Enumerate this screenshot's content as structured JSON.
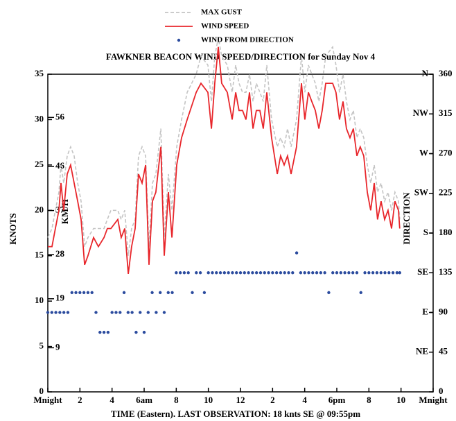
{
  "chart_data": {
    "type": "line",
    "title": "FAWKNER BEACON WIND SPEED/DIRECTION for Sunday Nov 4",
    "x_label": "TIME (Eastern). LAST OBSERVATION: 18 knts SE @ 09:55pm",
    "y_label": "KNOTS",
    "y3_label": "KM/H",
    "y2_label": "DIRECTION",
    "xlim": [
      0,
      24
    ],
    "xticks": [
      {
        "value": 0,
        "label": "Mnight"
      },
      2,
      4,
      {
        "value": 6,
        "label": "6am"
      },
      8,
      10,
      12,
      {
        "value": 14,
        "label": "2"
      },
      {
        "value": 16,
        "label": "4"
      },
      {
        "value": 18,
        "label": "6pm"
      },
      {
        "value": 20,
        "label": "8"
      },
      {
        "value": 22,
        "label": "10"
      },
      {
        "value": 24,
        "label": "Mnight"
      }
    ],
    "ylim": [
      0,
      35
    ],
    "yticks": [
      0,
      5,
      10,
      15,
      20,
      25,
      30,
      35
    ],
    "y3lim": [
      0,
      64.82
    ],
    "y3ticks": [
      9,
      19,
      28,
      37,
      46,
      56
    ],
    "y2lim": [
      0,
      360
    ],
    "y2ticks": [
      0,
      45,
      90,
      135,
      180,
      225,
      270,
      315,
      360
    ],
    "compass_ticks": [
      {
        "value": 45,
        "label": "NE"
      },
      {
        "value": 90,
        "label": "E"
      },
      {
        "value": 135,
        "label": "SE"
      },
      {
        "value": 180,
        "label": "S"
      },
      {
        "value": 225,
        "label": "SW"
      },
      {
        "value": 270,
        "label": "W"
      },
      {
        "value": 315,
        "label": "NW"
      },
      {
        "value": 360,
        "label": "N"
      }
    ],
    "grid": false,
    "x": [
      0,
      0.26,
      0.47,
      0.69,
      0.82,
      0.99,
      1.21,
      1.42,
      1.64,
      1.86,
      2.07,
      2.29,
      2.5,
      2.85,
      3.15,
      3.5,
      3.71,
      3.93,
      4.36,
      4.57,
      4.79,
      5.01,
      5.22,
      5.44,
      5.65,
      5.87,
      6.09,
      6.3,
      6.52,
      6.73,
      7.04,
      7.25,
      7.51,
      7.73,
      8.03,
      8.33,
      8.68,
      9.24,
      9.54,
      9.97,
      10.19,
      10.4,
      10.62,
      10.83,
      11.18,
      11.48,
      11.7,
      11.91,
      12.13,
      12.34,
      12.56,
      12.78,
      12.99,
      13.21,
      13.42,
      13.64,
      13.94,
      14.29,
      14.5,
      14.72,
      14.93,
      15.15,
      15.49,
      15.8,
      16.01,
      16.23,
      16.44,
      16.66,
      16.88,
      17.09,
      17.31,
      17.74,
      17.95,
      18.17,
      18.39,
      18.6,
      18.82,
      19.03,
      19.25,
      19.46,
      19.68,
      19.9,
      20.11,
      20.33,
      20.54,
      20.76,
      20.98,
      21.19,
      21.41,
      21.62,
      21.84,
      21.92
    ],
    "series": [
      {
        "name": "MAX GUST",
        "color": "#c4c4c4",
        "dashed": true,
        "values": [
          17,
          18,
          20,
          22,
          25,
          23,
          26,
          27,
          26,
          23,
          21,
          16,
          17,
          18,
          18,
          18,
          19,
          20,
          20,
          19,
          20,
          15,
          18,
          19,
          26,
          27,
          26,
          16,
          23,
          24,
          29,
          17,
          24,
          20,
          27,
          30,
          33,
          35,
          37,
          36,
          32,
          37,
          39,
          37,
          36,
          33,
          36,
          34,
          33,
          33,
          35,
          32,
          34,
          33,
          32,
          36,
          30,
          27,
          28,
          27,
          29,
          27,
          30,
          37,
          33,
          36,
          35,
          34,
          32,
          34,
          37,
          38,
          36,
          33,
          35,
          32,
          30,
          31,
          28,
          29,
          28,
          25,
          23,
          25,
          22,
          23,
          21,
          22,
          20,
          22,
          21,
          19
        ]
      },
      {
        "name": "WIND SPEED",
        "color": "#e8262b",
        "values": [
          16,
          16,
          18,
          20,
          23,
          20,
          24,
          25,
          23,
          21,
          19,
          14,
          15,
          17,
          16,
          17,
          18,
          18,
          19,
          17,
          18,
          13,
          16,
          18,
          24,
          23,
          25,
          14,
          21,
          22,
          27,
          15,
          22,
          17,
          25,
          28,
          30,
          33,
          34,
          33,
          29,
          34,
          38,
          34,
          33,
          30,
          33,
          31,
          31,
          30,
          33,
          29,
          31,
          31,
          29,
          33,
          28,
          24,
          26,
          25,
          26,
          24,
          27,
          34,
          30,
          33,
          32,
          31,
          29,
          31,
          34,
          34,
          33,
          30,
          32,
          29,
          28,
          29,
          26,
          27,
          26,
          22,
          20,
          23,
          19,
          21,
          19,
          20,
          18,
          21,
          20,
          18
        ]
      },
      {
        "name": "WIND FROM DIRECTION",
        "color": "#2b4b9e",
        "axis": "y2",
        "marker": "dot",
        "x": [
          0,
          0.25,
          0.5,
          0.75,
          1,
          1.25,
          1.5,
          1.75,
          2,
          2.25,
          2.5,
          2.75,
          3,
          3.25,
          3.5,
          3.75,
          4,
          4.25,
          4.5,
          4.75,
          5,
          5.25,
          5.5,
          5.75,
          6,
          6.25,
          6.5,
          6.75,
          7,
          7.25,
          7.5,
          7.75,
          8,
          8.25,
          8.5,
          8.75,
          9,
          9.25,
          9.5,
          9.75,
          10,
          10.25,
          10.5,
          10.75,
          11,
          11.25,
          11.5,
          11.75,
          12,
          12.25,
          12.5,
          12.75,
          13,
          13.25,
          13.5,
          13.75,
          14,
          14.25,
          14.5,
          14.75,
          15,
          15.25,
          15.5,
          15.75,
          16,
          16.25,
          16.5,
          16.75,
          17,
          17.25,
          17.5,
          17.75,
          18,
          18.25,
          18.5,
          18.75,
          19,
          19.25,
          19.5,
          19.75,
          20,
          20.25,
          20.5,
          20.75,
          21,
          21.25,
          21.5,
          21.75,
          21.92
        ],
        "values": [
          90,
          90,
          90,
          90,
          90,
          90,
          112.5,
          112.5,
          112.5,
          112.5,
          112.5,
          112.5,
          90,
          67.5,
          67.5,
          67.5,
          90,
          90,
          90,
          112.5,
          90,
          90,
          67.5,
          90,
          67.5,
          90,
          112.5,
          90,
          112.5,
          90,
          112.5,
          112.5,
          135,
          135,
          135,
          135,
          112.5,
          135,
          135,
          112.5,
          135,
          135,
          135,
          135,
          135,
          135,
          135,
          135,
          135,
          135,
          135,
          135,
          135,
          135,
          135,
          135,
          135,
          135,
          135,
          135,
          135,
          135,
          157.5,
          135,
          135,
          135,
          135,
          135,
          135,
          135,
          112.5,
          135,
          135,
          135,
          135,
          135,
          135,
          135,
          112.5,
          135,
          135,
          135,
          135,
          135,
          135,
          135,
          135,
          135,
          135
        ]
      }
    ]
  }
}
